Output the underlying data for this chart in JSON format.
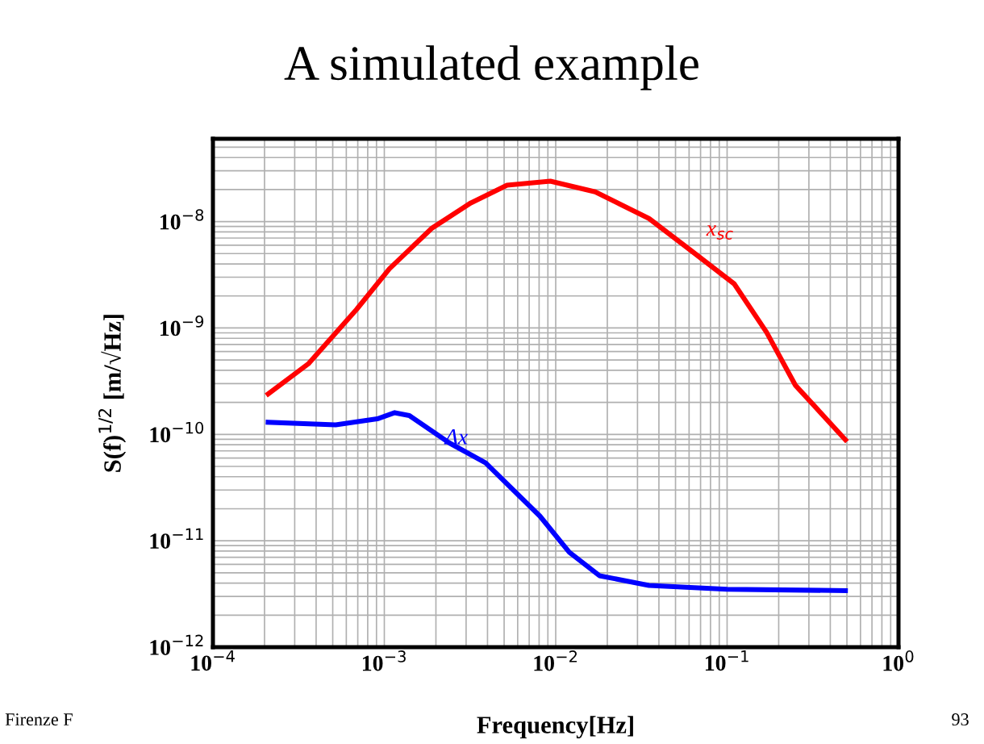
{
  "chart_data": {
    "type": "line",
    "title": "A simulated example",
    "xlabel": "Frequency[Hz]",
    "ylabel": "S(f)$^{1/2}$ [m/√Hz]",
    "log": "xy",
    "grid": true,
    "marker": "none",
    "line_style": "solid",
    "xlim": [
      0.0001,
      1
    ],
    "ylim": [
      1e-12,
      6e-08
    ],
    "xticks": [
      {
        "value": 0.0001,
        "label": "10$^{−4}$"
      },
      {
        "value": 0.001,
        "label": "10$^{−3}$"
      },
      {
        "value": 0.01,
        "label": "10$^{−2}$"
      },
      {
        "value": 0.1,
        "label": "10$^{−1}$"
      },
      {
        "value": 1,
        "label": "10$^{0}$"
      }
    ],
    "yticks": [
      {
        "value": 1e-12,
        "label": "10$^{−12}$"
      },
      {
        "value": 1e-11,
        "label": "10$^{−11}$"
      },
      {
        "value": 1e-10,
        "label": "10$^{−10}$"
      },
      {
        "value": 1e-09,
        "label": "10$^{−9}$"
      },
      {
        "value": 1e-08,
        "label": "10$^{−8}$"
      }
    ],
    "series": [
      {
        "name": "x$_{sc}$",
        "color": "#ff0000",
        "x": [
          0.00021,
          0.00036,
          0.00069,
          0.00107,
          0.0019,
          0.0032,
          0.0052,
          0.0093,
          0.017,
          0.035,
          0.062,
          0.11,
          0.17,
          0.25,
          0.49
        ],
        "values": [
          2.4e-10,
          4.6e-10,
          1.5e-09,
          3.6e-09,
          8.7e-09,
          1.5e-08,
          2.2e-08,
          2.4e-08,
          1.9e-08,
          1.07e-08,
          5.3e-09,
          2.6e-09,
          9.1e-10,
          2.9e-10,
          8.9e-11
        ]
      },
      {
        "name": "Δx",
        "color": "#0000ff",
        "x": [
          0.00021,
          0.00052,
          0.00091,
          0.00115,
          0.0014,
          0.0024,
          0.0039,
          0.0081,
          0.012,
          0.018,
          0.035,
          0.1,
          0.49
        ],
        "values": [
          1.3e-10,
          1.23e-10,
          1.4e-10,
          1.6e-10,
          1.5e-10,
          8.3e-11,
          5.4e-11,
          1.7e-11,
          7.8e-12,
          4.7e-12,
          3.8e-12,
          3.5e-12,
          3.4e-12
        ]
      }
    ],
    "annotations": [
      "Firenze F",
      "93"
    ]
  }
}
